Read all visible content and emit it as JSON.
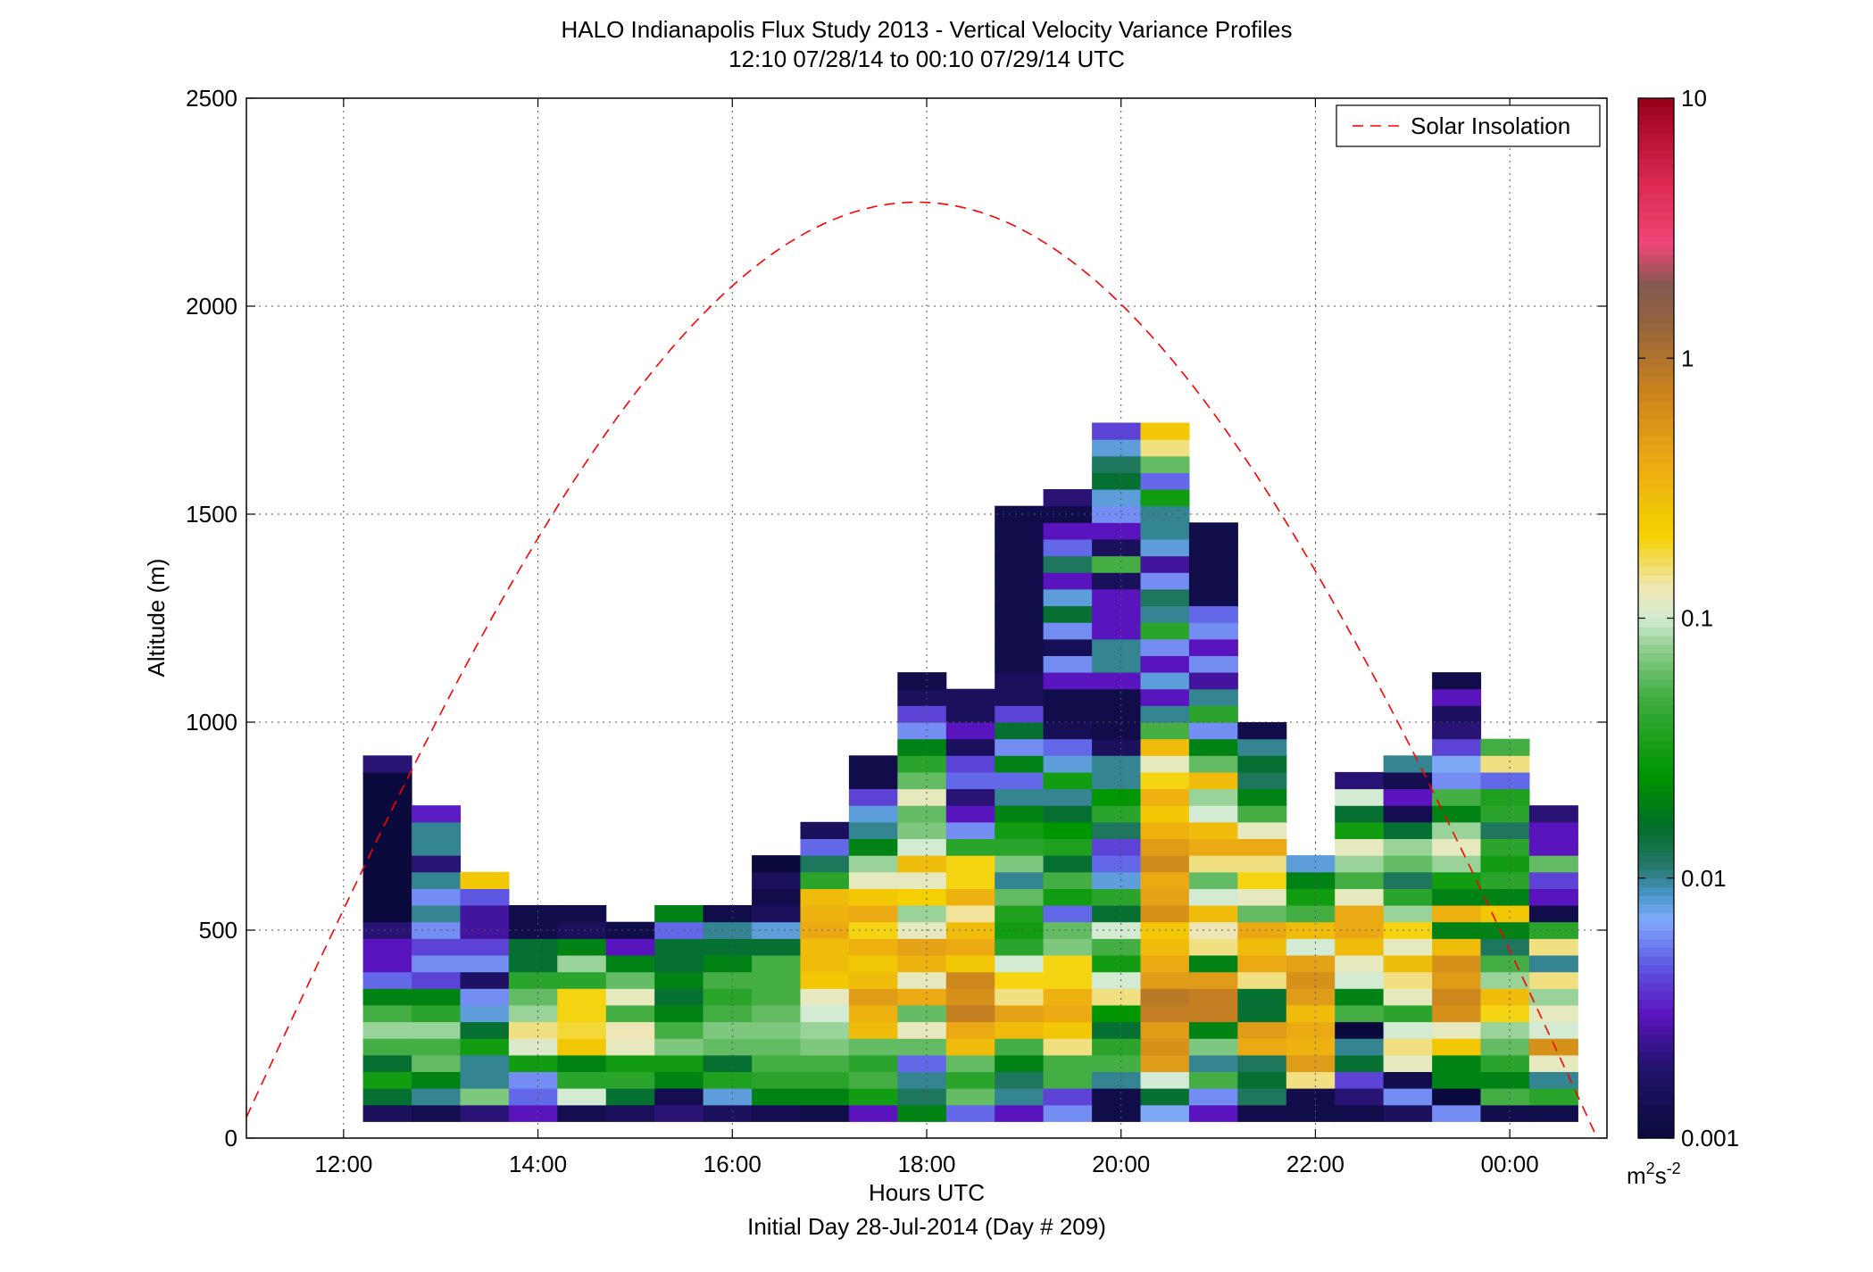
{
  "chart_data": {
    "type": "heatmap",
    "title": "HALO Indianapolis Flux Study 2013 - Vertical Velocity Variance Profiles",
    "subtitle": "12:10 07/28/14 to 00:10 07/29/14  UTC",
    "xlabel": "Hours UTC",
    "xlabel2": "Initial Day 28-Jul-2014 (Day # 209)",
    "ylabel": "Altitude (m)",
    "xlim": [
      11.0,
      25.0
    ],
    "ylim": [
      0,
      2500
    ],
    "x_tick_values": [
      12,
      14,
      16,
      18,
      20,
      22,
      24
    ],
    "x_tick_labels": [
      "12:00",
      "14:00",
      "16:00",
      "18:00",
      "20:00",
      "22:00",
      "00:00"
    ],
    "y_tick_values": [
      0,
      500,
      1000,
      1500,
      2000,
      2500
    ],
    "y_tick_labels": [
      "0",
      "500",
      "1000",
      "1500",
      "2000",
      "2500"
    ],
    "grid": true,
    "colorbar": {
      "scale": "log",
      "range": [
        0.001,
        10
      ],
      "tick_labels": [
        "10",
        "1",
        "0.1",
        "0.01",
        "0.001"
      ],
      "tick_values": [
        10,
        1,
        0.1,
        0.01,
        0.001
      ],
      "unit": "m²s⁻²",
      "unit_base": "m",
      "unit_exp1": "2",
      "unit_mid": "s",
      "unit_exp2": "-2"
    },
    "legend": {
      "label": "Solar Insolation",
      "position": "top-right",
      "color": "#ff0000",
      "style": "dashed"
    },
    "insolation_curve": {
      "peak_altitude": 2250,
      "peak_hour": 17.9,
      "start_hour": 11.0,
      "start_altitude": 150,
      "end_hour": 24.9,
      "end_altitude": 0
    },
    "bin_width_hours": 0.5,
    "bin_height_m": 40,
    "profiles": [
      {
        "t": 12.2,
        "lo": 40,
        "cells": [
          0.0015,
          0.015,
          0.03,
          0.015,
          0.05,
          0.08,
          0.05,
          0.02,
          0.005,
          0.003,
          0.003,
          0.002,
          0.001,
          0.001,
          0.001,
          0.001,
          0.001,
          0.001,
          0.001,
          0.001,
          0.001,
          0.002
        ]
      },
      {
        "t": 12.7,
        "lo": 40,
        "cells": [
          0.0013,
          0.01,
          0.02,
          0.06,
          0.05,
          0.08,
          0.04,
          0.02,
          0.004,
          0.006,
          0.004,
          0.006,
          0.01,
          0.006,
          0.01,
          0.002,
          0.01,
          0.01,
          0.0032
        ]
      },
      {
        "t": 13.2,
        "lo": 40,
        "cells": [
          0.002,
          0.07,
          0.01,
          0.01,
          0.03,
          0.015,
          0.008,
          0.006,
          0.0017,
          0.006,
          0.004,
          0.0025,
          0.0025,
          0.0045,
          0.25
        ]
      },
      {
        "t": 13.7,
        "lo": 40,
        "cells": [
          0.003,
          0.005,
          0.006,
          0.03,
          0.11,
          0.15,
          0.08,
          0.06,
          0.04,
          0.015,
          0.015,
          0.0012,
          0.0012
        ]
      },
      {
        "t": 14.2,
        "lo": 40,
        "cells": [
          0.0013,
          0.1,
          0.04,
          0.02,
          0.25,
          0.18,
          0.2,
          0.2,
          0.04,
          0.08,
          0.02,
          0.0015,
          0.0012
        ]
      },
      {
        "t": 14.7,
        "lo": 40,
        "cells": [
          0.0015,
          0.015,
          0.04,
          0.03,
          0.12,
          0.13,
          0.05,
          0.12,
          0.06,
          0.02,
          0.003,
          0.0012
        ]
      },
      {
        "t": 15.2,
        "lo": 40,
        "cells": [
          0.002,
          0.0013,
          0.02,
          0.03,
          0.07,
          0.05,
          0.02,
          0.015,
          0.02,
          0.015,
          0.015,
          0.005,
          0.02
        ]
      },
      {
        "t": 15.7,
        "lo": 40,
        "cells": [
          0.0015,
          0.008,
          0.035,
          0.015,
          0.06,
          0.07,
          0.05,
          0.04,
          0.05,
          0.02,
          0.015,
          0.01,
          0.0012
        ]
      },
      {
        "t": 16.2,
        "lo": 40,
        "cells": [
          0.0013,
          0.02,
          0.04,
          0.05,
          0.06,
          0.07,
          0.06,
          0.05,
          0.05,
          0.05,
          0.015,
          0.008,
          0.0015,
          0.0012,
          0.0015,
          0.001
        ]
      },
      {
        "t": 16.7,
        "lo": 40,
        "cells": [
          0.0012,
          0.02,
          0.04,
          0.05,
          0.07,
          0.08,
          0.1,
          0.12,
          0.25,
          0.3,
          0.3,
          0.4,
          0.35,
          0.3,
          0.04,
          0.012,
          0.005,
          0.0015
        ]
      },
      {
        "t": 17.2,
        "lo": 40,
        "cells": [
          0.003,
          0.03,
          0.05,
          0.04,
          0.06,
          0.3,
          0.35,
          0.5,
          0.3,
          0.25,
          0.35,
          0.2,
          0.4,
          0.25,
          0.12,
          0.08,
          0.02,
          0.01,
          0.008,
          0.004,
          0.0012,
          0.0012
        ]
      },
      {
        "t": 17.7,
        "lo": 40,
        "cells": [
          0.02,
          0.012,
          0.01,
          0.005,
          0.06,
          0.12,
          0.06,
          0.4,
          0.12,
          0.35,
          0.45,
          0.12,
          0.08,
          0.22,
          0.12,
          0.3,
          0.1,
          0.07,
          0.06,
          0.12,
          0.06,
          0.04,
          0.02,
          0.006,
          0.004,
          0.0015,
          0.0012
        ]
      },
      {
        "t": 18.2,
        "lo": 40,
        "cells": [
          0.005,
          0.06,
          0.04,
          0.06,
          0.3,
          0.4,
          0.8,
          0.6,
          0.7,
          0.25,
          0.4,
          0.3,
          0.14,
          0.35,
          0.2,
          0.2,
          0.04,
          0.006,
          0.003,
          0.002,
          0.005,
          0.004,
          0.0015,
          0.003,
          0.0015,
          0.0015
        ]
      },
      {
        "t": 18.7,
        "lo": 40,
        "cells": [
          0.003,
          0.01,
          0.012,
          0.02,
          0.05,
          0.3,
          0.45,
          0.15,
          0.2,
          0.1,
          0.04,
          0.03,
          0.035,
          0.06,
          0.01,
          0.07,
          0.04,
          0.03,
          0.02,
          0.01,
          0.005,
          0.02,
          0.006,
          0.015,
          0.004,
          0.0015,
          0.0015,
          0.0012,
          0.0012,
          0.0012,
          0.0012,
          0.0012,
          0.0012,
          0.0012,
          0.0012,
          0.0012,
          0.0012
        ]
      },
      {
        "t": 19.2,
        "lo": 40,
        "cells": [
          0.006,
          0.004,
          0.05,
          0.05,
          0.15,
          0.25,
          0.4,
          0.35,
          0.2,
          0.2,
          0.07,
          0.06,
          0.005,
          0.03,
          0.05,
          0.015,
          0.035,
          0.025,
          0.015,
          0.01,
          0.03,
          0.008,
          0.005,
          0.0014,
          0.0012,
          0.0012,
          0.003,
          0.006,
          0.0014,
          0.006,
          0.015,
          0.008,
          0.003,
          0.012,
          0.005,
          0.003,
          0.0012,
          0.002
        ]
      },
      {
        "t": 19.7,
        "lo": 40,
        "cells": [
          0.0012,
          0.0012,
          0.01,
          0.05,
          0.04,
          0.015,
          0.025,
          0.15,
          0.1,
          0.03,
          0.05,
          0.1,
          0.015,
          0.04,
          0.008,
          0.005,
          0.004,
          0.012,
          0.04,
          0.025,
          0.01,
          0.01,
          0.0015,
          0.0012,
          0.0012,
          0.0012,
          0.003,
          0.01,
          0.01,
          0.003,
          0.003,
          0.003,
          0.0015,
          0.05,
          0.0015,
          0.003,
          0.006,
          0.008,
          0.015,
          0.012,
          0.008,
          0.004
        ]
      },
      {
        "t": 20.2,
        "lo": 40,
        "cells": [
          0.007,
          0.015,
          0.1,
          0.5,
          0.6,
          0.5,
          0.8,
          0.9,
          0.5,
          0.4,
          0.3,
          0.25,
          0.6,
          0.45,
          0.4,
          0.65,
          0.5,
          0.35,
          0.25,
          0.35,
          0.2,
          0.12,
          0.3,
          0.05,
          0.01,
          0.003,
          0.008,
          0.003,
          0.006,
          0.04,
          0.01,
          0.012,
          0.006,
          0.0025,
          0.008,
          0.01,
          0.01,
          0.03,
          0.005,
          0.06,
          0.15,
          0.25
        ]
      },
      {
        "t": 20.7,
        "lo": 40,
        "cells": [
          0.003,
          0.006,
          0.05,
          0.01,
          0.07,
          0.02,
          0.8,
          0.8,
          0.5,
          0.02,
          0.15,
          0.13,
          0.3,
          0.1,
          0.06,
          0.15,
          0.4,
          0.3,
          0.1,
          0.08,
          0.3,
          0.06,
          0.02,
          0.006,
          0.04,
          0.01,
          0.0025,
          0.006,
          0.003,
          0.006,
          0.005,
          0.0012,
          0.0012,
          0.0012,
          0.0012,
          0.0012
        ]
      },
      {
        "t": 21.2,
        "lo": 40,
        "cells": [
          0.0012,
          0.012,
          0.015,
          0.012,
          0.4,
          0.5,
          0.015,
          0.015,
          0.15,
          0.4,
          0.3,
          0.4,
          0.06,
          0.12,
          0.2,
          0.15,
          0.4,
          0.12,
          0.05,
          0.02,
          0.012,
          0.015,
          0.01,
          0.0012
        ]
      },
      {
        "t": 21.7,
        "lo": 40,
        "cells": [
          0.0012,
          0.0012,
          0.15,
          0.5,
          0.35,
          0.4,
          0.3,
          0.5,
          0.6,
          0.45,
          0.1,
          0.3,
          0.05,
          0.03,
          0.02,
          0.008
        ]
      },
      {
        "t": 22.2,
        "lo": 40,
        "cells": [
          0.0012,
          0.002,
          0.004,
          0.015,
          0.01,
          0.001,
          0.05,
          0.02,
          0.1,
          0.12,
          0.3,
          0.4,
          0.4,
          0.12,
          0.05,
          0.08,
          0.12,
          0.03,
          0.015,
          0.1,
          0.002
        ]
      },
      {
        "t": 22.7,
        "lo": 40,
        "cells": [
          0.0015,
          0.006,
          0.0012,
          0.12,
          0.15,
          0.1,
          0.04,
          0.12,
          0.15,
          0.3,
          0.12,
          0.2,
          0.08,
          0.04,
          0.012,
          0.06,
          0.08,
          0.015,
          0.0013,
          0.003,
          0.0013,
          0.01
        ]
      },
      {
        "t": 23.2,
        "lo": 40,
        "cells": [
          0.006,
          0.001,
          0.02,
          0.02,
          0.25,
          0.12,
          0.6,
          0.7,
          0.5,
          0.6,
          0.3,
          0.02,
          0.35,
          0.02,
          0.03,
          0.08,
          0.12,
          0.08,
          0.02,
          0.05,
          0.006,
          0.007,
          0.004,
          0.002,
          0.0016,
          0.003,
          0.0012
        ]
      },
      {
        "t": 23.7,
        "lo": 40,
        "cells": [
          0.0012,
          0.05,
          0.02,
          0.04,
          0.06,
          0.08,
          0.2,
          0.3,
          0.08,
          0.05,
          0.012,
          0.02,
          0.25,
          0.02,
          0.04,
          0.03,
          0.04,
          0.012,
          0.04,
          0.035,
          0.005,
          0.15,
          0.05
        ]
      },
      {
        "t": 24.2,
        "lo": 40,
        "cells": [
          0.0012,
          0.04,
          0.01,
          0.12,
          0.6,
          0.1,
          0.12,
          0.08,
          0.15,
          0.01,
          0.15,
          0.04,
          0.0012,
          0.003,
          0.004,
          0.06,
          0.003,
          0.003,
          0.002
        ]
      }
    ]
  }
}
